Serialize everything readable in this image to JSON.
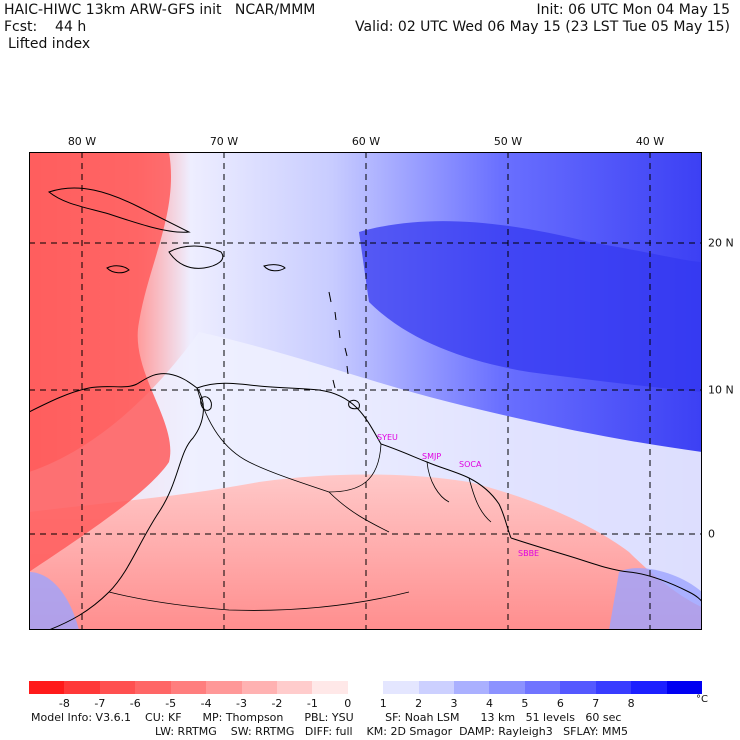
{
  "header": {
    "line1_left": "HAIC-HIWC 13km ARW-GFS init   NCAR/MMM",
    "line2_left": "Fcst:    44 h",
    "line3_left": "Lifted index",
    "line1_right": "Init: 06 UTC Mon 04 May 15",
    "line2_right": "Valid: 02 UTC Wed 06 May 15 (23 LST Tue 05 May 15)"
  },
  "map": {
    "longitude_labels": [
      "80 W",
      "70 W",
      "60 W",
      "50 W",
      "40 W"
    ],
    "latitude_labels": [
      "20 N",
      "10 N",
      "0"
    ],
    "station_labels": [
      "SYEU",
      "SMJP",
      "SOCA",
      "SBBE"
    ],
    "colors": {
      "negative_strong": "#ff3b3b",
      "negative_weak": "#ffc0c0",
      "neutral": "#ffffff",
      "positive_weak": "#c0c8ff",
      "positive_strong": "#2a2af0"
    }
  },
  "colorbar": {
    "ticks": [
      "-8",
      "-7",
      "-6",
      "-5",
      "-4",
      "-3",
      "-2",
      "-1",
      "0",
      "1",
      "2",
      "3",
      "4",
      "5",
      "6",
      "7",
      "8"
    ],
    "unit": "°C",
    "colors": [
      "#ff1a1a",
      "#ff3838",
      "#ff5050",
      "#ff6666",
      "#ff7e7e",
      "#ff9898",
      "#ffb2b2",
      "#ffcccc",
      "#ffe8e8",
      "#ffffff",
      "#e4e6ff",
      "#ccd0ff",
      "#aab0ff",
      "#8c92ff",
      "#7074ff",
      "#5458ff",
      "#383cff",
      "#1c20ff",
      "#0000f2"
    ]
  },
  "footer": {
    "line1": "Model Info: V3.6.1    CU: KF      MP: Thompson      PBL: YSU         SF: Noah LSM      13 km   51 levels   60 sec",
    "line2": "LW: RRTMG    SW: RRTMG   DIFF: full    KM: 2D Smagor  DAMP: Rayleigh3   SFLAY: MM5"
  }
}
